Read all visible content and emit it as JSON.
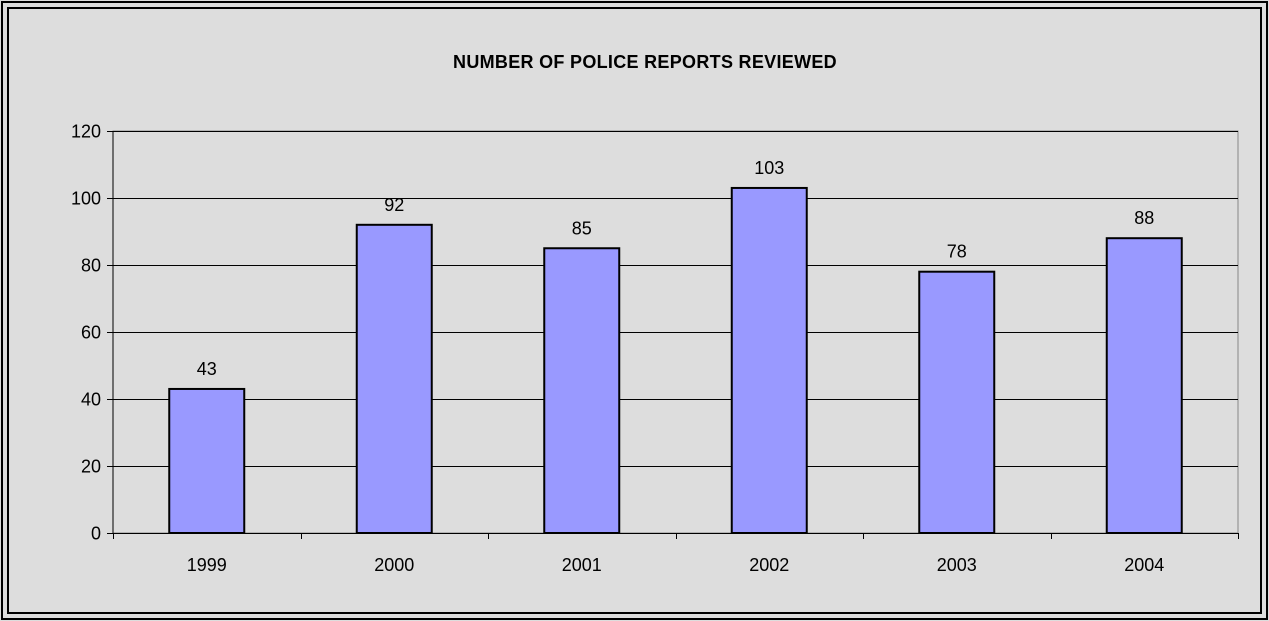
{
  "chart_data": {
    "type": "bar",
    "title": "NUMBER OF POLICE REPORTS REVIEWED",
    "xlabel": "",
    "ylabel": "",
    "categories": [
      "1999",
      "2000",
      "2001",
      "2002",
      "2003",
      "2004"
    ],
    "values": [
      43,
      92,
      85,
      103,
      78,
      88
    ],
    "data_labels": [
      "43",
      "92",
      "85",
      "103",
      "78",
      "88"
    ],
    "ylim": [
      0,
      120
    ],
    "yticks": [
      0,
      20,
      40,
      60,
      80,
      100,
      120
    ],
    "ytick_labels": [
      "0",
      "20",
      "40",
      "60",
      "80",
      "100",
      "120"
    ],
    "grid": true,
    "legend": "none"
  },
  "colors": {
    "background": "#dddddd",
    "bar_fill": "#9999ff",
    "bar_stroke": "#000000",
    "gridline": "#000000",
    "frame": "#000000",
    "plot_border": "#888888"
  }
}
